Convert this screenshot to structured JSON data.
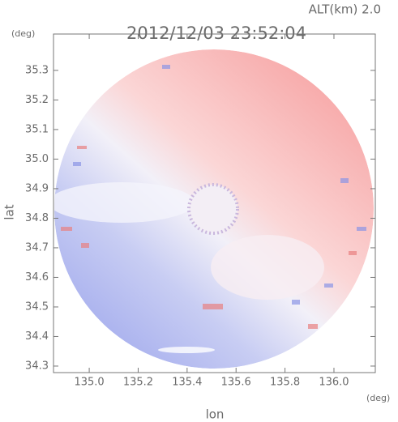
{
  "chart_data": {
    "type": "field",
    "title": "2012/12/03 23:52:04",
    "subtitle": "ALT(km) 2.0",
    "x_label": "lon",
    "y_label": "lat",
    "x_unit": "(deg)",
    "y_unit": "(deg)",
    "xlim": [
      134.854,
      136.169
    ],
    "ylim": [
      34.278,
      35.423
    ],
    "xticks": [
      {
        "value": 135.0,
        "label": "135.0"
      },
      135.2,
      135.4,
      135.6,
      135.8,
      {
        "value": 136.0,
        "label": "136.0"
      }
    ],
    "yticks": [
      34.3,
      34.4,
      34.5,
      34.6,
      34.7,
      34.8,
      34.9,
      {
        "value": 35.0,
        "label": "35.0"
      },
      35.1,
      35.2,
      35.3
    ]
  }
}
